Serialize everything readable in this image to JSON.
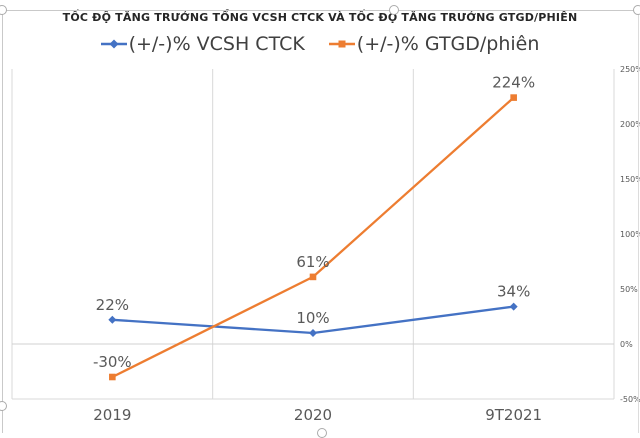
{
  "chart_data": {
    "type": "line",
    "title": "TỐC ĐỘ TĂNG TRƯỞNG TỔNG VCSH CTCK VÀ TỐC ĐỘ TĂNG TRƯỞNG GTGD/PHIÊN",
    "categories": [
      "2019",
      "2020",
      "9T2021"
    ],
    "series": [
      {
        "name": "(+/-)% VCSH CTCK",
        "values": [
          22,
          10,
          34
        ],
        "data_labels": [
          "22%",
          "10%",
          "34%"
        ],
        "color": "#4472C4",
        "marker": "diamond"
      },
      {
        "name": "(+/-)% GTGD/phiên",
        "values": [
          -30,
          61,
          224
        ],
        "data_labels": [
          "-30%",
          "61%",
          "224%"
        ],
        "color": "#ED7D31",
        "marker": "square"
      }
    ],
    "y_axis": {
      "side": "right",
      "min": -50,
      "max": 250,
      "step": 50,
      "ticks": [
        250,
        200,
        150,
        100,
        50,
        0,
        -50
      ],
      "tick_labels": [
        "250%",
        "200%",
        "150%",
        "100%",
        "50%",
        "0%",
        "-50%"
      ]
    },
    "legend_position": "top",
    "grid": {
      "vertical_major": true,
      "horizontal_zero_line": true
    },
    "styles": {
      "gridline_color": "#d9d9d9",
      "zero_line_color": "#d0d0d0",
      "axis_label_color": "#595959",
      "data_label_color": "#595959",
      "title_color": "#262626",
      "legend_text_color": "#404040"
    }
  }
}
